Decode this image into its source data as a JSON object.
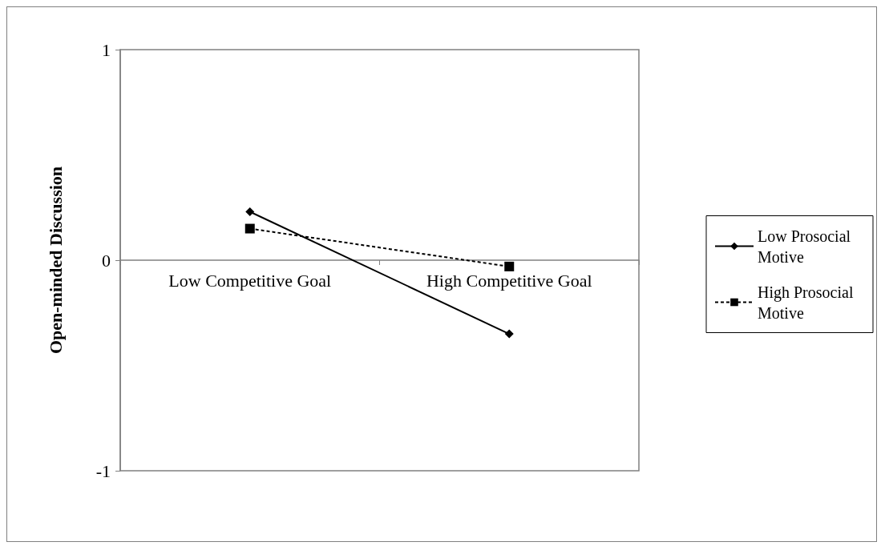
{
  "chart_data": {
    "type": "line",
    "ylabel": "Open-minded Discussion",
    "categories": [
      "Low Competitive Goal",
      "High Competitive Goal"
    ],
    "series": [
      {
        "name": "Low Prosocial Motive",
        "color": "#000000",
        "values": [
          0.23,
          -0.35
        ],
        "marker": "diamond",
        "line_style": "solid"
      },
      {
        "name": "High Prosocial Motive",
        "color": "#000000",
        "values": [
          0.15,
          -0.03
        ],
        "marker": "square",
        "line_style": "dashed"
      }
    ],
    "ylim": [
      -1,
      1
    ],
    "yticks": [
      -1,
      0,
      1
    ],
    "grid": false,
    "legend": "right"
  }
}
